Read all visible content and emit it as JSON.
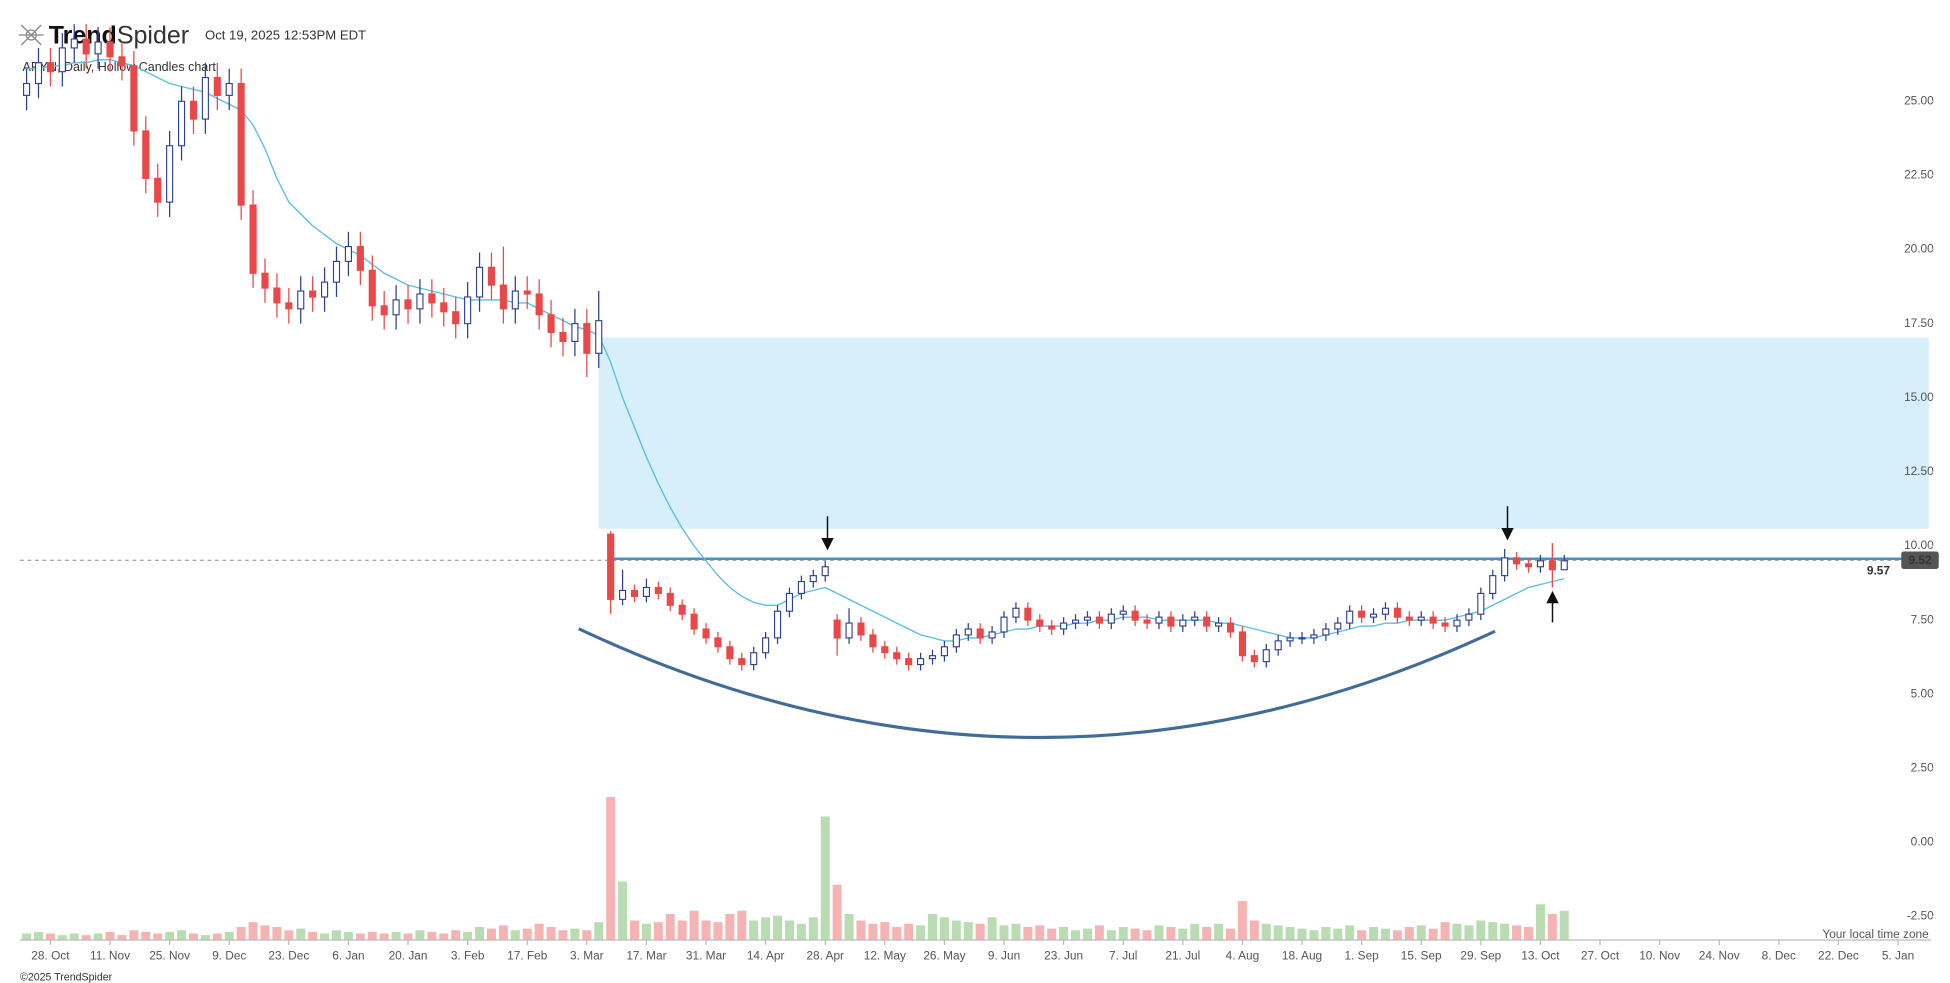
{
  "header": {
    "logo_bold": "Trend",
    "logo_light": "Spider",
    "timestamp": "Oct 19, 2025 12:53PM EDT",
    "timezone_note": "Your local time zone",
    "copyright": "©2025 TrendSpider"
  },
  "chart_data": {
    "type": "candlestick",
    "title": "ARYN, Daily, Hollow Candles chart",
    "categories": [
      null,
      null,
      "28. Oct",
      null,
      null,
      null,
      null,
      "11. Nov",
      null,
      null,
      null,
      null,
      "25. Nov",
      null,
      null,
      null,
      null,
      "9. Dec",
      null,
      null,
      null,
      null,
      "23. Dec",
      null,
      null,
      null,
      null,
      "6. Jan",
      null,
      null,
      null,
      null,
      "20. Jan",
      null,
      null,
      null,
      null,
      "3. Feb",
      null,
      null,
      null,
      null,
      "17. Feb",
      null,
      null,
      null,
      null,
      "3. Mar",
      null,
      null,
      null,
      null,
      "17. Mar",
      null,
      null,
      null,
      null,
      "31. Mar",
      null,
      null,
      null,
      null,
      "14. Apr",
      null,
      null,
      null,
      null,
      "28. Apr",
      null,
      null,
      null,
      null,
      "12. May",
      null,
      null,
      null,
      null,
      "26. May",
      null,
      null,
      null,
      null,
      "9. Jun",
      null,
      null,
      null,
      null,
      "23. Jun",
      null,
      null,
      null,
      null,
      "7. Jul",
      null,
      null,
      null,
      null,
      "21. Jul",
      null,
      null,
      null,
      null,
      "4. Aug",
      null,
      null,
      null,
      null,
      "18. Aug",
      null,
      null,
      null,
      null,
      "1. Sep",
      null,
      null,
      null,
      null,
      "15. Sep",
      null,
      null,
      null,
      null,
      "29. Sep",
      null,
      null,
      null,
      null,
      "13. Oct",
      null,
      null,
      null,
      null,
      "27. Oct",
      null,
      null,
      null,
      null,
      "10. Nov",
      null,
      null,
      null,
      null,
      "24. Nov",
      null,
      null,
      null,
      null,
      "8. Dec",
      null,
      null,
      null,
      null,
      "22. Dec",
      null,
      null,
      null,
      null,
      "5. Jan"
    ],
    "open": [
      25.2,
      25.6,
      26.3,
      26.0,
      26.8,
      27.1,
      26.6,
      27.0,
      26.5,
      26.2,
      24.0,
      22.4,
      21.6,
      23.5,
      25.0,
      24.4,
      25.8,
      25.2,
      25.6,
      21.5,
      19.2,
      18.7,
      18.2,
      18.0,
      18.6,
      18.4,
      18.9,
      19.6,
      20.1,
      19.3,
      18.1,
      17.8,
      18.3,
      18.0,
      18.5,
      18.2,
      17.9,
      17.5,
      18.4,
      19.4,
      18.8,
      18.0,
      18.6,
      18.5,
      17.8,
      17.2,
      16.9,
      17.5,
      16.5,
      10.4,
      8.2,
      8.5,
      8.3,
      8.6,
      8.4,
      8.0,
      7.7,
      7.2,
      6.9,
      6.6,
      6.2,
      6.0,
      6.4,
      6.9,
      7.8,
      8.4,
      8.8,
      9.0,
      7.5,
      6.9,
      7.4,
      7.0,
      6.6,
      6.4,
      6.2,
      6.0,
      6.2,
      6.3,
      6.6,
      7.0,
      7.2,
      6.9,
      7.1,
      7.6,
      7.9,
      7.5,
      7.3,
      7.2,
      7.4,
      7.5,
      7.6,
      7.4,
      7.7,
      7.8,
      7.5,
      7.4,
      7.6,
      7.3,
      7.5,
      7.6,
      7.3,
      7.4,
      7.1,
      6.3,
      6.1,
      6.5,
      6.8,
      6.9,
      6.9,
      7.0,
      7.2,
      7.4,
      7.8,
      7.6,
      7.7,
      7.9,
      7.6,
      7.5,
      7.6,
      7.4,
      7.3,
      7.5,
      7.7,
      8.4,
      9.0,
      9.6,
      9.4,
      9.3,
      9.5,
      9.2,
      null,
      null,
      null,
      null,
      null,
      null,
      null,
      null,
      null,
      null,
      null,
      null,
      null,
      null,
      null,
      null,
      null,
      null,
      null,
      null,
      null,
      null,
      null,
      null,
      null,
      null,
      null,
      null
    ],
    "high": [
      26.1,
      26.8,
      26.8,
      27.3,
      27.6,
      27.6,
      27.5,
      27.5,
      27.0,
      26.7,
      24.5,
      22.9,
      24.0,
      25.5,
      25.5,
      26.3,
      26.3,
      26.1,
      26.1,
      22.0,
      19.7,
      19.2,
      18.7,
      19.1,
      19.1,
      19.4,
      20.1,
      20.6,
      20.6,
      19.8,
      18.6,
      18.8,
      18.8,
      19.0,
      19.0,
      18.7,
      18.4,
      18.9,
      19.9,
      19.9,
      20.1,
      19.1,
      19.1,
      19.0,
      18.3,
      17.7,
      18.0,
      18.0,
      18.6,
      10.5,
      9.2,
      8.7,
      8.9,
      8.8,
      8.6,
      8.2,
      7.9,
      7.4,
      7.1,
      6.8,
      6.4,
      6.6,
      7.1,
      8.0,
      8.6,
      9.0,
      9.2,
      9.5,
      7.7,
      7.9,
      7.6,
      7.2,
      6.8,
      6.6,
      6.4,
      6.4,
      6.5,
      6.8,
      7.2,
      7.4,
      7.4,
      7.3,
      7.8,
      8.1,
      8.1,
      7.7,
      7.5,
      7.6,
      7.7,
      7.8,
      7.8,
      7.9,
      8.0,
      8.0,
      7.7,
      7.8,
      7.8,
      7.7,
      7.8,
      7.8,
      7.6,
      7.6,
      7.3,
      6.5,
      6.7,
      7.0,
      7.1,
      7.1,
      7.2,
      7.4,
      7.6,
      8.0,
      8.0,
      7.9,
      8.1,
      8.1,
      7.8,
      7.8,
      7.8,
      7.6,
      7.7,
      7.9,
      8.6,
      9.2,
      9.9,
      9.8,
      9.6,
      9.7,
      10.1,
      9.7,
      null,
      null,
      null,
      null,
      null,
      null,
      null,
      null,
      null,
      null,
      null,
      null,
      null,
      null,
      null,
      null,
      null,
      null,
      null,
      null,
      null,
      null,
      null,
      null,
      null,
      null,
      null,
      null
    ],
    "low": [
      24.7,
      25.1,
      25.5,
      25.5,
      26.3,
      26.1,
      26.1,
      26.0,
      25.7,
      23.5,
      21.9,
      21.1,
      21.1,
      23.0,
      23.9,
      23.9,
      24.7,
      24.7,
      21.0,
      18.7,
      18.2,
      17.7,
      17.5,
      17.5,
      17.9,
      17.9,
      18.4,
      19.1,
      18.8,
      17.6,
      17.3,
      17.3,
      17.5,
      17.5,
      17.7,
      17.4,
      17.0,
      17.0,
      17.9,
      18.3,
      17.5,
      17.5,
      18.0,
      17.3,
      16.7,
      16.4,
      16.4,
      15.7,
      16.0,
      7.7,
      8.0,
      8.1,
      8.1,
      8.2,
      7.8,
      7.5,
      7.0,
      6.7,
      6.4,
      6.0,
      5.8,
      5.8,
      6.2,
      6.7,
      7.6,
      8.2,
      8.6,
      8.8,
      6.3,
      6.7,
      6.8,
      6.4,
      6.2,
      6.0,
      5.8,
      5.8,
      6.0,
      6.1,
      6.4,
      6.8,
      6.7,
      6.7,
      6.9,
      7.4,
      7.3,
      7.1,
      7.0,
      7.0,
      7.2,
      7.3,
      7.2,
      7.2,
      7.5,
      7.3,
      7.2,
      7.2,
      7.1,
      7.1,
      7.3,
      7.1,
      7.1,
      6.9,
      6.1,
      5.9,
      5.9,
      6.3,
      6.6,
      6.7,
      6.7,
      6.8,
      7.0,
      7.2,
      7.4,
      7.4,
      7.5,
      7.4,
      7.3,
      7.3,
      7.2,
      7.1,
      7.1,
      7.3,
      7.5,
      8.2,
      8.8,
      9.2,
      9.1,
      9.1,
      8.6,
      9.3,
      null,
      null,
      null,
      null,
      null,
      null,
      null,
      null,
      null,
      null,
      null,
      null,
      null,
      null,
      null,
      null,
      null,
      null,
      null,
      null,
      null,
      null,
      null,
      null,
      null,
      null,
      null,
      null
    ],
    "close": [
      25.6,
      26.3,
      26.0,
      26.8,
      27.1,
      26.6,
      27.0,
      26.5,
      26.2,
      24.0,
      22.4,
      21.6,
      23.5,
      25.0,
      24.4,
      25.8,
      25.2,
      25.6,
      21.5,
      19.2,
      18.7,
      18.2,
      18.0,
      18.6,
      18.4,
      18.9,
      19.6,
      20.1,
      19.3,
      18.1,
      17.8,
      18.3,
      18.0,
      18.5,
      18.2,
      17.9,
      17.5,
      18.4,
      19.4,
      18.8,
      18.0,
      18.6,
      18.5,
      17.8,
      17.2,
      16.9,
      17.5,
      16.5,
      17.6,
      8.2,
      8.5,
      8.3,
      8.6,
      8.4,
      8.0,
      7.7,
      7.2,
      6.9,
      6.6,
      6.2,
      6.0,
      6.4,
      6.9,
      7.8,
      8.4,
      8.8,
      9.0,
      9.3,
      6.9,
      7.4,
      7.0,
      6.6,
      6.4,
      6.2,
      6.0,
      6.2,
      6.3,
      6.6,
      7.0,
      7.2,
      6.9,
      7.1,
      7.6,
      7.9,
      7.5,
      7.3,
      7.2,
      7.4,
      7.5,
      7.6,
      7.4,
      7.7,
      7.8,
      7.5,
      7.4,
      7.6,
      7.3,
      7.5,
      7.6,
      7.3,
      7.4,
      7.1,
      6.3,
      6.1,
      6.5,
      6.8,
      6.9,
      6.9,
      7.0,
      7.2,
      7.4,
      7.8,
      7.6,
      7.7,
      7.9,
      7.6,
      7.5,
      7.6,
      7.4,
      7.3,
      7.5,
      7.7,
      8.4,
      9.0,
      9.6,
      9.4,
      9.3,
      9.5,
      9.2,
      9.5,
      null,
      null,
      null,
      null,
      null,
      null,
      null,
      null,
      null,
      null,
      null,
      null,
      null,
      null,
      null,
      null,
      null,
      null,
      null,
      null,
      null,
      null,
      null,
      null,
      null,
      null,
      null,
      null
    ],
    "volume": [
      0.2,
      0.25,
      0.2,
      0.15,
      0.2,
      0.15,
      0.2,
      0.25,
      0.15,
      0.3,
      0.25,
      0.2,
      0.25,
      0.3,
      0.2,
      0.15,
      0.2,
      0.25,
      0.4,
      0.55,
      0.45,
      0.4,
      0.3,
      0.35,
      0.25,
      0.2,
      0.3,
      0.25,
      0.2,
      0.25,
      0.2,
      0.25,
      0.2,
      0.3,
      0.25,
      0.2,
      0.3,
      0.25,
      0.4,
      0.35,
      0.45,
      0.3,
      0.35,
      0.5,
      0.4,
      0.3,
      0.35,
      0.3,
      0.55,
      4.4,
      1.8,
      0.6,
      0.5,
      0.55,
      0.8,
      0.6,
      0.9,
      0.6,
      0.55,
      0.8,
      0.9,
      0.6,
      0.7,
      0.75,
      0.6,
      0.5,
      0.7,
      3.8,
      1.7,
      0.8,
      0.6,
      0.5,
      0.55,
      0.4,
      0.5,
      0.45,
      0.8,
      0.7,
      0.6,
      0.55,
      0.5,
      0.7,
      0.45,
      0.5,
      0.4,
      0.45,
      0.35,
      0.4,
      0.3,
      0.35,
      0.45,
      0.3,
      0.4,
      0.35,
      0.3,
      0.45,
      0.4,
      0.35,
      0.5,
      0.4,
      0.5,
      0.35,
      1.2,
      0.6,
      0.5,
      0.45,
      0.4,
      0.35,
      0.3,
      0.4,
      0.35,
      0.45,
      0.3,
      0.4,
      0.35,
      0.3,
      0.4,
      0.45,
      0.35,
      0.55,
      0.5,
      0.45,
      0.6,
      0.55,
      0.5,
      0.45,
      0.4,
      1.1,
      0.8,
      0.9,
      null,
      null,
      null,
      null,
      null,
      null,
      null,
      null,
      null,
      null,
      null,
      null,
      null,
      null,
      null,
      null,
      null,
      null,
      null,
      null,
      null,
      null,
      null,
      null,
      null,
      null,
      null,
      null
    ],
    "ma": [
      26.1,
      26.1,
      26.2,
      26.2,
      26.3,
      26.3,
      26.4,
      26.4,
      26.3,
      26.2,
      26.0,
      25.8,
      25.6,
      25.5,
      25.4,
      25.3,
      25.1,
      24.9,
      24.7,
      24.2,
      23.4,
      22.4,
      21.6,
      21.2,
      20.8,
      20.5,
      20.2,
      20.0,
      19.8,
      19.5,
      19.2,
      19.0,
      18.8,
      18.7,
      18.6,
      18.5,
      18.4,
      18.3,
      18.3,
      18.3,
      18.3,
      18.2,
      18.2,
      18.0,
      17.8,
      17.6,
      17.4,
      17.3,
      17.1,
      16.2,
      15.0,
      14.0,
      13.0,
      12.1,
      11.3,
      10.6,
      10.0,
      9.5,
      9.0,
      8.6,
      8.3,
      8.1,
      8.0,
      8.0,
      8.2,
      8.4,
      8.5,
      8.6,
      8.4,
      8.2,
      8.0,
      7.8,
      7.6,
      7.4,
      7.2,
      7.0,
      6.9,
      6.8,
      6.8,
      6.9,
      6.9,
      7.0,
      7.1,
      7.2,
      7.2,
      7.3,
      7.3,
      7.3,
      7.4,
      7.4,
      7.5,
      7.5,
      7.6,
      7.6,
      7.6,
      7.5,
      7.5,
      7.5,
      7.5,
      7.5,
      7.4,
      7.4,
      7.3,
      7.2,
      7.1,
      7.0,
      6.9,
      6.9,
      6.9,
      7.0,
      7.1,
      7.2,
      7.3,
      7.3,
      7.4,
      7.4,
      7.5,
      7.5,
      7.5,
      7.5,
      7.6,
      7.7,
      7.8,
      8.0,
      8.2,
      8.4,
      8.6,
      8.7,
      8.8,
      8.9,
      null,
      null,
      null,
      null,
      null,
      null,
      null,
      null,
      null,
      null,
      null,
      null,
      null,
      null,
      null,
      null,
      null,
      null,
      null,
      null,
      null,
      null,
      null,
      null,
      null,
      null,
      null,
      null
    ],
    "ylim": [
      -3.29,
      27.7
    ],
    "yticks": [
      {
        "value": -2.5,
        "label": "-2.50"
      },
      {
        "value": 0,
        "label": "0.00"
      },
      {
        "value": 2.5,
        "label": "2.50"
      },
      {
        "value": 5,
        "label": "5.00"
      },
      {
        "value": 7.5,
        "label": "7.50"
      },
      {
        "value": 10,
        "label": "10.00"
      },
      {
        "value": 12.5,
        "label": "12.50"
      },
      {
        "value": 15,
        "label": "15.00"
      },
      {
        "value": 17.5,
        "label": "17.50"
      },
      {
        "value": 20,
        "label": "20.00"
      },
      {
        "value": 22.5,
        "label": "22.50"
      },
      {
        "value": 25,
        "label": "25.00"
      }
    ],
    "volume_lim": [
      0,
      5
    ],
    "up_color": "#2e3f8f",
    "down_color": "#e84848",
    "ma_color": "#5bbde6",
    "volume_up_color": "#b9dcb3",
    "volume_down_color": "#f6b3b3",
    "zone": [
      10.58,
      17.03
    ],
    "zone_color": "#d6effb",
    "level": {
      "value": 9.57,
      "label": "9.57",
      "color": "#4a8fc6"
    },
    "last_price": {
      "value": 9.52,
      "label": "9.52"
    }
  }
}
